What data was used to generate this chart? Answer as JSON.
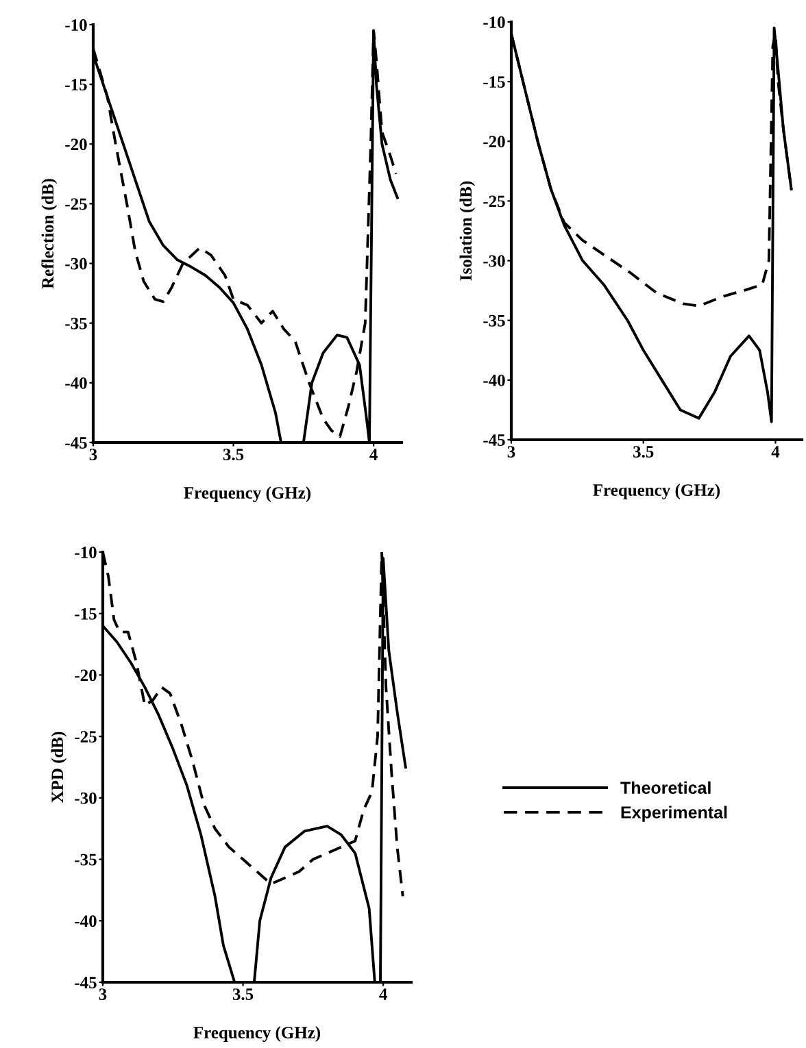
{
  "chart_data": [
    {
      "type": "line",
      "ylabel": "Reflection (dB)",
      "xlabel": "Frequency (GHz)",
      "xlim": [
        3,
        4.1
      ],
      "ylim": [
        -45,
        -10
      ],
      "xticks": [
        3,
        3.5,
        4
      ],
      "yticks": [
        -10,
        -15,
        -20,
        -25,
        -30,
        -35,
        -40,
        -45
      ],
      "grid": false,
      "legend": false,
      "series": [
        {
          "color": "#000000",
          "line_style": "solid",
          "x": [
            3.0,
            3.05,
            3.1,
            3.15,
            3.2,
            3.25,
            3.3,
            3.35,
            3.4,
            3.45,
            3.5,
            3.55,
            3.6,
            3.65,
            3.67,
            3.7,
            3.75,
            3.78,
            3.82,
            3.87,
            3.905,
            3.95,
            3.975,
            3.985,
            4.0,
            4.01,
            4.03,
            4.06,
            4.085
          ],
          "values": [
            -12.5,
            -16,
            -19.5,
            -23,
            -26.5,
            -28.5,
            -29.7,
            -30.3,
            -31,
            -32,
            -33.3,
            -35.5,
            -38.5,
            -42.5,
            -45,
            null,
            -45,
            -40,
            -37.5,
            -36,
            -36.2,
            -38.5,
            -43,
            -45,
            -10.5,
            -15,
            -20,
            -23,
            -24.5
          ]
        },
        {
          "color": "#000000",
          "line_style": "dashed",
          "x": [
            3.0,
            3.05,
            3.08,
            3.12,
            3.15,
            3.18,
            3.22,
            3.25,
            3.28,
            3.32,
            3.38,
            3.42,
            3.47,
            3.5,
            3.55,
            3.6,
            3.64,
            3.68,
            3.72,
            3.77,
            3.82,
            3.85,
            3.88,
            3.91,
            3.94,
            3.97,
            3.99,
            4.0,
            4.01,
            4.03,
            4.06,
            4.08
          ],
          "values": [
            -12,
            -16,
            -20,
            -25,
            -29,
            -31.5,
            -33,
            -33.2,
            -32,
            -30,
            -28.7,
            -29.3,
            -31,
            -33,
            -33.5,
            -35,
            -34,
            -35.5,
            -36.5,
            -40,
            -43,
            -44,
            -44.5,
            -42,
            -39,
            -35,
            -20,
            -10.5,
            -13,
            -19,
            -21,
            -22.5
          ]
        }
      ]
    },
    {
      "type": "line",
      "ylabel": "Isolation (dB)",
      "xlabel": "Frequency (GHz)",
      "xlim": [
        3,
        4.1
      ],
      "ylim": [
        -45,
        -10
      ],
      "xticks": [
        3,
        3.5,
        4
      ],
      "yticks": [
        -10,
        -15,
        -20,
        -25,
        -30,
        -35,
        -40,
        -45
      ],
      "grid": false,
      "legend": false,
      "series": [
        {
          "color": "#000000",
          "line_style": "solid",
          "x": [
            3.0,
            3.05,
            3.1,
            3.15,
            3.2,
            3.27,
            3.35,
            3.44,
            3.5,
            3.57,
            3.64,
            3.71,
            3.77,
            3.83,
            3.9,
            3.94,
            3.97,
            3.985,
            3.995,
            4.01,
            4.03,
            4.06
          ],
          "values": [
            -11,
            -15.5,
            -20,
            -24,
            -27,
            -30,
            -32,
            -35,
            -37.5,
            -40,
            -42.5,
            -43.2,
            -41,
            -38,
            -36.3,
            -37.5,
            -41,
            -43.5,
            -10.5,
            -14,
            -19,
            -24
          ]
        },
        {
          "color": "#000000",
          "line_style": "dashed",
          "x": [
            3.0,
            3.05,
            3.1,
            3.15,
            3.2,
            3.27,
            3.35,
            3.45,
            3.55,
            3.65,
            3.71,
            3.8,
            3.88,
            3.95,
            3.975,
            3.99,
            4.0,
            4.01,
            4.03,
            4.06
          ],
          "values": [
            -11,
            -15.5,
            -20,
            -24,
            -26.8,
            -28.3,
            -29.5,
            -31,
            -32.7,
            -33.6,
            -33.8,
            -33,
            -32.5,
            -32,
            -30,
            -12,
            -11,
            -15,
            -19,
            -24
          ]
        }
      ]
    },
    {
      "type": "line",
      "ylabel": "XPD (dB)",
      "xlabel": "Frequency (GHz)",
      "xlim": [
        3,
        4.1
      ],
      "ylim": [
        -45,
        -10
      ],
      "xticks": [
        3,
        3.5,
        4
      ],
      "yticks": [
        -10,
        -15,
        -20,
        -25,
        -30,
        -35,
        -40,
        -45
      ],
      "grid": false,
      "legend": "right",
      "series": [
        {
          "name": "Theoretical",
          "color": "#000000",
          "line_style": "solid",
          "x": [
            3.0,
            3.05,
            3.1,
            3.15,
            3.2,
            3.25,
            3.3,
            3.35,
            3.4,
            3.43,
            3.47,
            3.5,
            3.54,
            3.56,
            3.6,
            3.65,
            3.72,
            3.8,
            3.85,
            3.9,
            3.95,
            3.97,
            3.98,
            3.99,
            4.0,
            4.02,
            4.05,
            4.08
          ],
          "values": [
            -16,
            -17.3,
            -19,
            -21,
            -23.3,
            -26,
            -29,
            -33,
            -38,
            -42,
            -45,
            null,
            -45,
            -40,
            -36.5,
            -34,
            -32.7,
            -32.3,
            -33,
            -34.5,
            -39,
            -45,
            null,
            -45,
            -10.5,
            -18,
            -23,
            -27.5
          ]
        },
        {
          "name": "Experimental",
          "color": "#000000",
          "line_style": "dashed",
          "x": [
            3.0,
            3.02,
            3.04,
            3.06,
            3.09,
            3.12,
            3.15,
            3.18,
            3.21,
            3.24,
            3.28,
            3.32,
            3.36,
            3.4,
            3.45,
            3.5,
            3.55,
            3.6,
            3.65,
            3.7,
            3.75,
            3.8,
            3.85,
            3.9,
            3.93,
            3.96,
            3.98,
            3.995,
            4.01,
            4.03,
            4.05,
            4.07
          ],
          "values": [
            -10,
            -12,
            -15.5,
            -16.5,
            -16.5,
            -19,
            -22.5,
            -22,
            -21,
            -21.5,
            -24,
            -27,
            -30.5,
            -32.5,
            -34,
            -35,
            -36,
            -37,
            -36.5,
            -36,
            -35,
            -34.5,
            -34,
            -33.5,
            -31,
            -29.5,
            -25,
            -10,
            -21,
            -28,
            -34,
            -38
          ]
        }
      ]
    }
  ]
}
